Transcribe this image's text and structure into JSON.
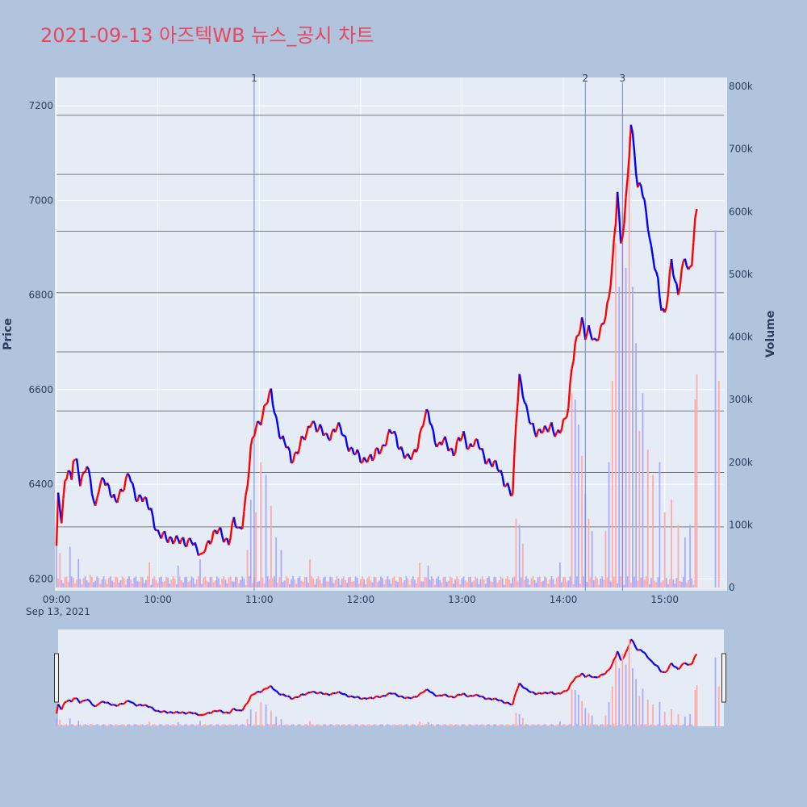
{
  "title": "2021-09-13 아즈텍WB 뉴스_공시 차트",
  "colors": {
    "up": "#ff0000",
    "down": "#0000ff",
    "up_volume": "#ffaaaa",
    "down_volume": "#aaaaff",
    "background": "#b0c4de",
    "plot_bg": "#e5ecf6",
    "title": "#e8475f",
    "news_line": "#6f86e6",
    "hline": "#7a7a7a"
  },
  "chart_data": {
    "type": "line",
    "xlabel": "",
    "ylabel": "Price",
    "y2label": "Volume",
    "xlim": [
      0,
      395
    ],
    "ylim": [
      6175,
      7260
    ],
    "y2lim": [
      0,
      800000
    ],
    "grid": true,
    "x_ticks": [
      {
        "value": 0,
        "label": "09:00",
        "sub": "Sep 13, 2021"
      },
      {
        "value": 60,
        "label": "10:00"
      },
      {
        "value": 120,
        "label": "11:00"
      },
      {
        "value": 180,
        "label": "12:00"
      },
      {
        "value": 240,
        "label": "13:00"
      },
      {
        "value": 300,
        "label": "14:00"
      },
      {
        "value": 360,
        "label": "15:00"
      }
    ],
    "y_ticks": [
      6200,
      6400,
      6600,
      6800,
      7000,
      7200
    ],
    "y2_ticks": [
      {
        "value": 0,
        "label": "0"
      },
      {
        "value": 100000,
        "label": "100k"
      },
      {
        "value": 200000,
        "label": "200k"
      },
      {
        "value": 300000,
        "label": "300k"
      },
      {
        "value": 400000,
        "label": "400k"
      },
      {
        "value": 500000,
        "label": "500k"
      },
      {
        "value": 600000,
        "label": "600k"
      },
      {
        "value": 700000,
        "label": "700k"
      },
      {
        "value": 800000,
        "label": "800k"
      }
    ],
    "reference_lines": [
      6310,
      6425,
      6555,
      6680,
      6805,
      6935,
      7055,
      7180
    ],
    "news_markers": [
      {
        "x": 117,
        "label": "1"
      },
      {
        "x": 313,
        "label": "2"
      },
      {
        "x": 335,
        "label": "3"
      }
    ],
    "price_anchors": [
      [
        0,
        6270
      ],
      [
        1,
        6370
      ],
      [
        3,
        6320
      ],
      [
        5,
        6400
      ],
      [
        7,
        6440
      ],
      [
        9,
        6410
      ],
      [
        10,
        6460
      ],
      [
        12,
        6440
      ],
      [
        14,
        6400
      ],
      [
        16,
        6420
      ],
      [
        18,
        6450
      ],
      [
        20,
        6410
      ],
      [
        23,
        6340
      ],
      [
        25,
        6390
      ],
      [
        28,
        6420
      ],
      [
        30,
        6400
      ],
      [
        33,
        6370
      ],
      [
        35,
        6360
      ],
      [
        37,
        6380
      ],
      [
        40,
        6400
      ],
      [
        43,
        6420
      ],
      [
        45,
        6390
      ],
      [
        48,
        6370
      ],
      [
        50,
        6380
      ],
      [
        53,
        6360
      ],
      [
        56,
        6340
      ],
      [
        60,
        6300
      ],
      [
        63,
        6290
      ],
      [
        66,
        6280
      ],
      [
        70,
        6290
      ],
      [
        73,
        6280
      ],
      [
        76,
        6270
      ],
      [
        80,
        6290
      ],
      [
        83,
        6260
      ],
      [
        86,
        6240
      ],
      [
        88,
        6270
      ],
      [
        92,
        6290
      ],
      [
        96,
        6300
      ],
      [
        99,
        6290
      ],
      [
        102,
        6280
      ],
      [
        105,
        6320
      ],
      [
        108,
        6300
      ],
      [
        110,
        6320
      ],
      [
        113,
        6400
      ],
      [
        115,
        6470
      ],
      [
        118,
        6520
      ],
      [
        121,
        6540
      ],
      [
        124,
        6570
      ],
      [
        127,
        6590
      ],
      [
        130,
        6540
      ],
      [
        133,
        6500
      ],
      [
        136,
        6480
      ],
      [
        139,
        6450
      ],
      [
        142,
        6470
      ],
      [
        145,
        6490
      ],
      [
        148,
        6500
      ],
      [
        151,
        6540
      ],
      [
        154,
        6520
      ],
      [
        157,
        6510
      ],
      [
        160,
        6500
      ],
      [
        163,
        6510
      ],
      [
        166,
        6520
      ],
      [
        169,
        6510
      ],
      [
        172,
        6490
      ],
      [
        175,
        6470
      ],
      [
        178,
        6460
      ],
      [
        181,
        6450
      ],
      [
        184,
        6460
      ],
      [
        187,
        6450
      ],
      [
        190,
        6470
      ],
      [
        193,
        6480
      ],
      [
        196,
        6500
      ],
      [
        199,
        6510
      ],
      [
        202,
        6490
      ],
      [
        205,
        6470
      ],
      [
        208,
        6450
      ],
      [
        211,
        6460
      ],
      [
        214,
        6490
      ],
      [
        217,
        6530
      ],
      [
        220,
        6550
      ],
      [
        223,
        6510
      ],
      [
        226,
        6480
      ],
      [
        229,
        6490
      ],
      [
        232,
        6480
      ],
      [
        235,
        6470
      ],
      [
        238,
        6490
      ],
      [
        241,
        6500
      ],
      [
        244,
        6480
      ],
      [
        247,
        6490
      ],
      [
        250,
        6480
      ],
      [
        253,
        6460
      ],
      [
        256,
        6450
      ],
      [
        259,
        6440
      ],
      [
        262,
        6430
      ],
      [
        265,
        6410
      ],
      [
        268,
        6390
      ],
      [
        270,
        6370
      ],
      [
        272,
        6530
      ],
      [
        274,
        6630
      ],
      [
        276,
        6600
      ],
      [
        278,
        6560
      ],
      [
        281,
        6520
      ],
      [
        284,
        6510
      ],
      [
        287,
        6520
      ],
      [
        290,
        6510
      ],
      [
        293,
        6520
      ],
      [
        296,
        6510
      ],
      [
        299,
        6520
      ],
      [
        301,
        6530
      ],
      [
        303,
        6560
      ],
      [
        305,
        6650
      ],
      [
        307,
        6700
      ],
      [
        309,
        6720
      ],
      [
        311,
        6740
      ],
      [
        313,
        6710
      ],
      [
        315,
        6730
      ],
      [
        317,
        6720
      ],
      [
        319,
        6700
      ],
      [
        321,
        6710
      ],
      [
        323,
        6730
      ],
      [
        325,
        6760
      ],
      [
        327,
        6800
      ],
      [
        329,
        6870
      ],
      [
        331,
        6950
      ],
      [
        332,
        7020
      ],
      [
        334,
        6900
      ],
      [
        336,
        6960
      ],
      [
        338,
        7050
      ],
      [
        340,
        7160
      ],
      [
        342,
        7100
      ],
      [
        344,
        7020
      ],
      [
        346,
        7040
      ],
      [
        348,
        7000
      ],
      [
        350,
        6950
      ],
      [
        352,
        6890
      ],
      [
        354,
        6860
      ],
      [
        356,
        6830
      ],
      [
        358,
        6780
      ],
      [
        360,
        6760
      ],
      [
        362,
        6800
      ],
      [
        364,
        6870
      ],
      [
        366,
        6830
      ],
      [
        368,
        6810
      ],
      [
        370,
        6850
      ],
      [
        372,
        6880
      ],
      [
        374,
        6840
      ],
      [
        376,
        6870
      ],
      [
        378,
        6960
      ],
      [
        379,
        6990
      ]
    ],
    "volume_spikes": [
      [
        0,
        70000
      ],
      [
        2,
        55000
      ],
      [
        8,
        65000
      ],
      [
        13,
        45000
      ],
      [
        20,
        20000
      ],
      [
        55,
        40000
      ],
      [
        72,
        35000
      ],
      [
        85,
        45000
      ],
      [
        113,
        60000
      ],
      [
        115,
        140000
      ],
      [
        118,
        120000
      ],
      [
        121,
        200000
      ],
      [
        124,
        180000
      ],
      [
        127,
        130000
      ],
      [
        130,
        80000
      ],
      [
        133,
        60000
      ],
      [
        150,
        45000
      ],
      [
        215,
        40000
      ],
      [
        220,
        35000
      ],
      [
        272,
        110000
      ],
      [
        274,
        100000
      ],
      [
        276,
        70000
      ],
      [
        298,
        40000
      ],
      [
        305,
        310000
      ],
      [
        307,
        300000
      ],
      [
        309,
        260000
      ],
      [
        311,
        210000
      ],
      [
        313,
        150000
      ],
      [
        315,
        110000
      ],
      [
        317,
        90000
      ],
      [
        325,
        90000
      ],
      [
        327,
        200000
      ],
      [
        329,
        330000
      ],
      [
        331,
        550000
      ],
      [
        333,
        480000
      ],
      [
        335,
        600000
      ],
      [
        337,
        510000
      ],
      [
        339,
        720000
      ],
      [
        341,
        480000
      ],
      [
        343,
        390000
      ],
      [
        345,
        250000
      ],
      [
        347,
        310000
      ],
      [
        350,
        220000
      ],
      [
        353,
        180000
      ],
      [
        357,
        200000
      ],
      [
        360,
        120000
      ],
      [
        364,
        140000
      ],
      [
        368,
        100000
      ],
      [
        372,
        80000
      ],
      [
        375,
        100000
      ],
      [
        378,
        300000
      ],
      [
        379,
        340000
      ],
      [
        390,
        570000
      ],
      [
        392,
        330000
      ]
    ],
    "navigator_handles": [
      0,
      395
    ]
  }
}
